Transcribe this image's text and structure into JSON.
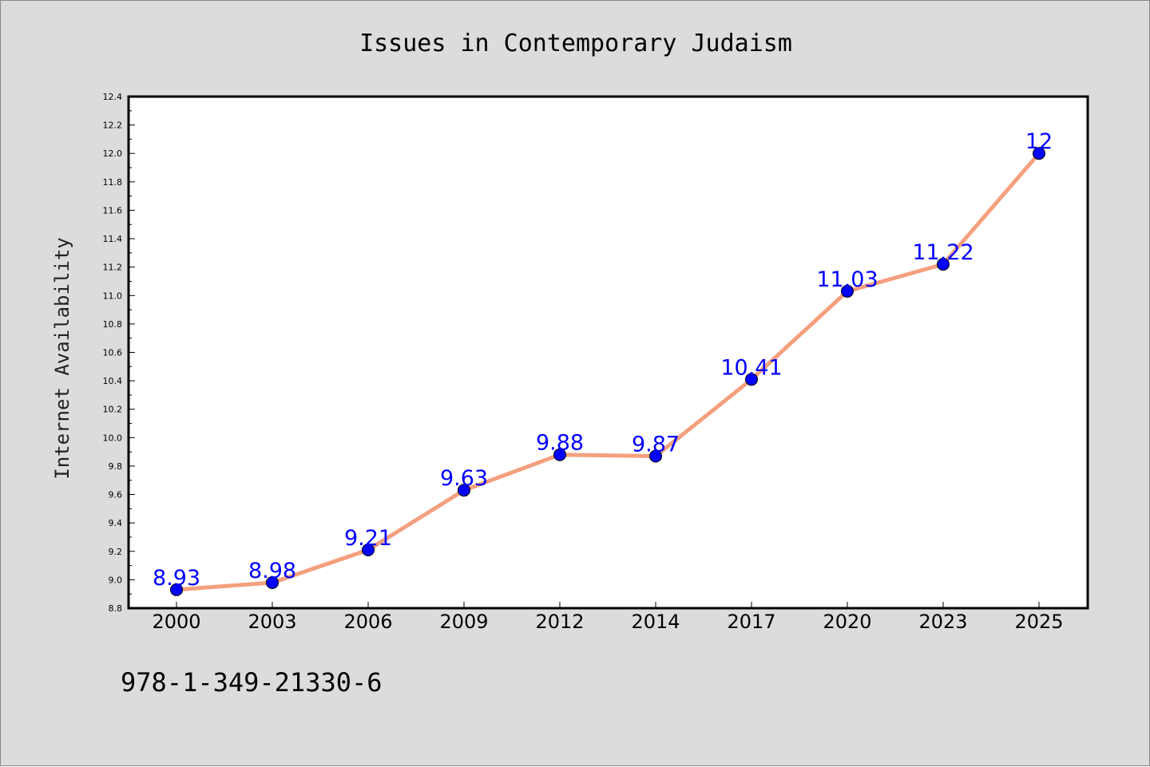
{
  "chart_data": {
    "type": "line",
    "title": "Issues in Contemporary Judaism",
    "xlabel": "",
    "ylabel": "Internet Availability",
    "categories": [
      "2000",
      "2003",
      "2006",
      "2009",
      "2012",
      "2014",
      "2017",
      "2020",
      "2023",
      "2025"
    ],
    "values": [
      8.93,
      8.98,
      9.21,
      9.63,
      9.88,
      9.87,
      10.41,
      11.03,
      11.22,
      12
    ],
    "data_labels": [
      "8.93",
      "8.98",
      "9.21",
      "9.63",
      "9.88",
      "9.87",
      "10.41",
      "11.03",
      "11.22",
      "12"
    ],
    "ylim": [
      8.8,
      12.4
    ],
    "yticks": [
      "8.8",
      "9.0",
      "9.2",
      "9.4",
      "9.6",
      "9.8",
      "10.0",
      "10.2",
      "10.4",
      "10.6",
      "10.8",
      "11.0",
      "11.2",
      "11.4",
      "11.6",
      "11.8",
      "12.0",
      "12.2",
      "12.4"
    ],
    "grid": false,
    "legend": "none",
    "colors": {
      "line": "#f4a07e",
      "marker": "#0000ff",
      "marker_edge": "#000000",
      "data_label": "#0000ff",
      "figure_background": "#dcdcdc",
      "plot_background": "#ffffff"
    }
  },
  "footer": {
    "isbn": "978-1-349-21330-6"
  }
}
